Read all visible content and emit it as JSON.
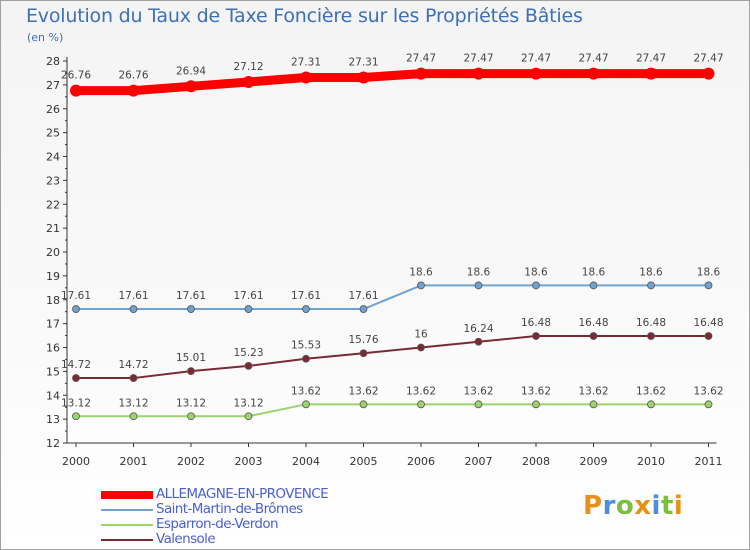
{
  "title": "Evolution du Taux de Taxe Foncière sur les Propriétés Bâties",
  "unit_label": "(en %)",
  "brand": {
    "letters": [
      "P",
      "r",
      "o",
      "x",
      "i",
      "t",
      "i"
    ],
    "colors": [
      "#e8901a",
      "#4a8fd8",
      "#7cbf3a",
      "#e8901a",
      "#4a8fd8",
      "#7cbf3a",
      "#e8901a"
    ]
  },
  "chart_data": {
    "type": "line",
    "xlabel": "",
    "ylabel": "(en %)",
    "ylim": [
      12,
      28
    ],
    "yticks": [
      12,
      13,
      14,
      15,
      16,
      17,
      18,
      19,
      20,
      21,
      22,
      23,
      24,
      25,
      26,
      27,
      28
    ],
    "grid": false,
    "legend": "bottom-left",
    "x": [
      "2000",
      "2001",
      "2002",
      "2003",
      "2004",
      "2005",
      "2006",
      "2007",
      "2008",
      "2009",
      "2010",
      "2011"
    ],
    "series": [
      {
        "name": "ALLEMAGNE-EN-PROVENCE",
        "color": "#ff0000",
        "values": [
          26.76,
          26.76,
          26.94,
          27.12,
          27.31,
          27.31,
          27.47,
          27.47,
          27.47,
          27.47,
          27.47,
          27.47
        ],
        "labels": [
          "26.76",
          "26.76",
          "26.94",
          "27.12",
          "27.31",
          "27.31",
          "27.47",
          "27.47",
          "27.47",
          "27.47",
          "27.47",
          "27.47"
        ]
      },
      {
        "name": "Saint-Martin-de-Brômes",
        "color": "#6fa3cf",
        "values": [
          17.61,
          17.61,
          17.61,
          17.61,
          17.61,
          17.61,
          18.6,
          18.6,
          18.6,
          18.6,
          18.6,
          18.6
        ],
        "labels": [
          "17.61",
          "17.61",
          "17.61",
          "17.61",
          "17.61",
          "17.61",
          "18.6",
          "18.6",
          "18.6",
          "18.6",
          "18.6",
          "18.6"
        ]
      },
      {
        "name": "Esparron-de-Verdon",
        "color": "#9ad46b",
        "values": [
          13.12,
          13.12,
          13.12,
          13.12,
          13.62,
          13.62,
          13.62,
          13.62,
          13.62,
          13.62,
          13.62,
          13.62
        ],
        "labels": [
          "13.12",
          "13.12",
          "13.12",
          "13.12",
          "13.62",
          "13.62",
          "13.62",
          "13.62",
          "13.62",
          "13.62",
          "13.62",
          "13.62"
        ]
      },
      {
        "name": "Valensole",
        "color": "#7a2a32",
        "values": [
          14.72,
          14.72,
          15.01,
          15.23,
          15.53,
          15.76,
          16,
          16.24,
          16.48,
          16.48,
          16.48,
          16.48
        ],
        "labels": [
          "14.72",
          "14.72",
          "15.01",
          "15.23",
          "15.53",
          "15.76",
          "16",
          "16.24",
          "16.48",
          "16.48",
          "16.48",
          "16.48"
        ]
      }
    ]
  }
}
